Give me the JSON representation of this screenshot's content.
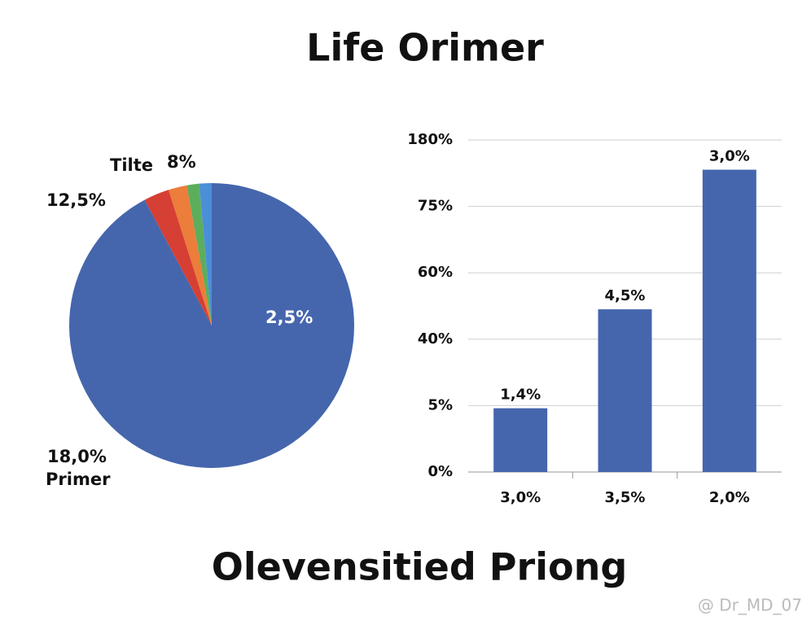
{
  "title": "Life Orimer",
  "footer": "Olevensitied Priong",
  "watermark": "@ Dr_MD_07",
  "chart_data": [
    {
      "type": "pie",
      "values": [
        92.2,
        2.9,
        2.1,
        1.4,
        1.4
      ],
      "colors": [
        "#4566ad",
        "#d63f33",
        "#ec7d3a",
        "#5cae5c",
        "#4a8fd8"
      ],
      "annotations": [
        "Tilte",
        "8%",
        "12,5%",
        "2,5%",
        "18,0%",
        "Primer"
      ]
    },
    {
      "type": "bar",
      "categories": [
        "3,0%",
        "3,5%",
        "2,0%"
      ],
      "values": [
        4.8,
        49,
        133
      ],
      "color": "#4566ad",
      "annotations": [
        "1,4%",
        "4,5%",
        "3,0%"
      ],
      "ylim": [
        0,
        180
      ],
      "yticks": [
        {
          "value": 0,
          "label": "0%"
        },
        {
          "value": 5,
          "label": "5%"
        },
        {
          "value": 40,
          "label": "40%"
        },
        {
          "value": 60,
          "label": "60%"
        },
        {
          "value": 75,
          "label": "75%"
        },
        {
          "value": 180,
          "label": "180%"
        }
      ],
      "grid": true
    }
  ]
}
